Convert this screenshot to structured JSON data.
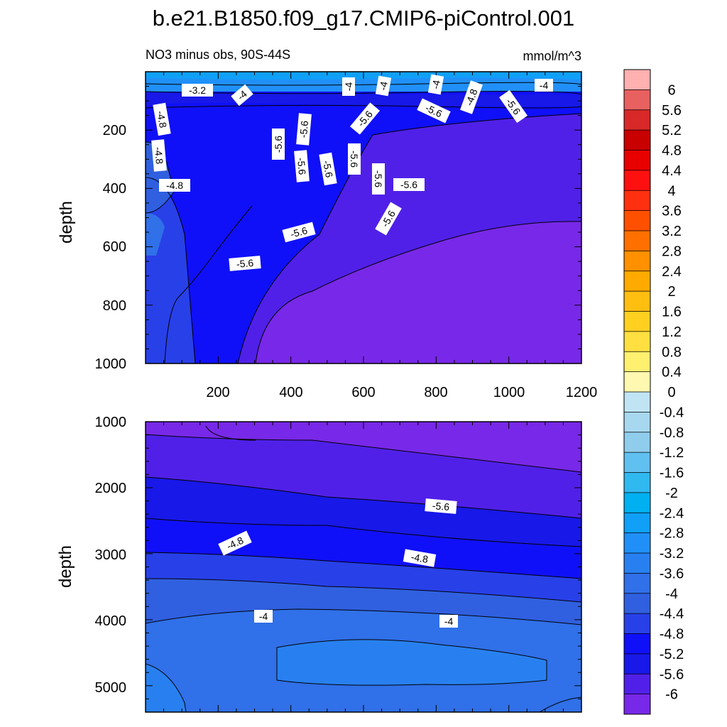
{
  "figure": {
    "title": "b.e21.B1850.f09_g17.CMIP6-piControl.001",
    "subtitle_left": "NO3 minus obs, 90S-44S",
    "units": "mmol/m^3"
  },
  "chart_data": [
    {
      "type": "heatmap",
      "panel": "upper",
      "ylabel": "depth",
      "xlim": [
        0,
        1200
      ],
      "ylim": [
        1000,
        0
      ],
      "x_ticks": [
        "200",
        "400",
        "600",
        "800",
        "1000",
        "1200"
      ],
      "y_ticks": [
        "200",
        "400",
        "600",
        "800",
        "1000"
      ],
      "contour_labels": [
        "-3.2",
        "-4",
        "-4",
        "-4",
        "-4",
        "-4",
        "-4.8",
        "-4.8",
        "-4.8",
        "-4.8",
        "-5.6",
        "-5.6",
        "-5.6",
        "-5.6",
        "-5.6",
        "-5.6",
        "-5.6",
        "-5.6",
        "-5.6",
        "-5.6",
        "-5.6",
        "-5.6",
        "-5.6"
      ]
    },
    {
      "type": "heatmap",
      "panel": "lower",
      "ylabel": "depth",
      "xlim": [
        0,
        1200
      ],
      "ylim": [
        5400,
        1000
      ],
      "y_ticks": [
        "1000",
        "2000",
        "3000",
        "4000",
        "5000"
      ],
      "contour_labels": [
        "-5.6",
        "-4.8",
        "-4.8",
        "-4",
        "-4"
      ]
    }
  ],
  "colorbar": {
    "levels": [
      "6",
      "5.6",
      "5.2",
      "4.8",
      "4.4",
      "4",
      "3.6",
      "3.2",
      "2.8",
      "2.4",
      "2",
      "1.6",
      "1.2",
      "0.8",
      "0.4",
      "0",
      "-0.4",
      "-0.8",
      "-1.2",
      "-1.6",
      "-2",
      "-2.4",
      "-2.8",
      "-3.2",
      "-3.6",
      "-4",
      "-4.4",
      "-4.8",
      "-5.2",
      "-5.6",
      "-6"
    ],
    "colors": [
      "#ffb0b0",
      "#e86060",
      "#d82828",
      "#c80000",
      "#e80000",
      "#ff1010",
      "#ff3010",
      "#ff5000",
      "#ff7000",
      "#ff9000",
      "#ffaa00",
      "#ffbe10",
      "#ffd020",
      "#ffe040",
      "#fff070",
      "#fff8b0",
      "#c0e4f4",
      "#a8d8f0",
      "#90ccec",
      "#60c0f0",
      "#30b8f0",
      "#00b0f0",
      "#10a0f8",
      "#2090f8",
      "#2880f0",
      "#3070e8",
      "#3060e0",
      "#2840e8",
      "#1010f8",
      "#1818e8",
      "#5020e8",
      "#7828e8"
    ]
  }
}
